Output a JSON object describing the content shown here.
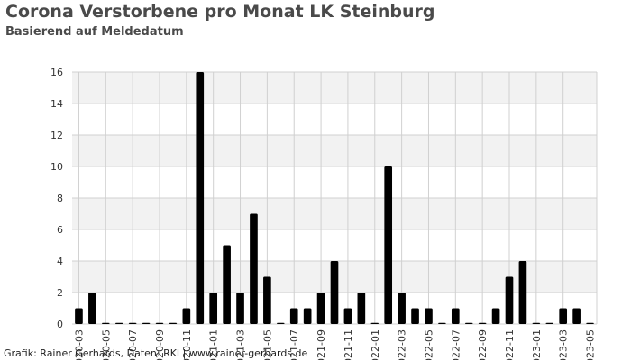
{
  "chart_data": {
    "type": "bar",
    "title": "Corona Verstorbene pro Monat LK Steinburg",
    "subtitle": "Basierend auf Meldedatum",
    "xlabel": "",
    "ylabel": "",
    "ylim": [
      0,
      16
    ],
    "yticks": [
      "0",
      "2",
      "4",
      "6",
      "8",
      "10",
      "12",
      "14",
      "16"
    ],
    "grid": true,
    "bar_color": "#000000",
    "categories": [
      "2020-03",
      "2020-04",
      "2020-05",
      "2020-06",
      "2020-07",
      "2020-08",
      "2020-09",
      "2020-10",
      "2020-11",
      "2020-12",
      "2021-01",
      "2021-02",
      "2021-03",
      "2021-04",
      "2021-05",
      "2021-06",
      "2021-07",
      "2021-08",
      "2021-09",
      "2021-10",
      "2021-11",
      "2021-12",
      "2022-01",
      "2022-02",
      "2022-03",
      "2022-04",
      "2022-05",
      "2022-06",
      "2022-07",
      "2022-08",
      "2022-09",
      "2022-10",
      "2022-11",
      "2022-12",
      "2023-01",
      "2023-02",
      "2023-03",
      "2023-04",
      "2023-05"
    ],
    "tick_labels": [
      "2020-03",
      "2020-05",
      "2020-07",
      "2020-09",
      "2020-11",
      "2021-01",
      "2021-03",
      "2021-05",
      "2021-07",
      "2021-09",
      "2021-11",
      "2022-01",
      "2022-03",
      "2022-05",
      "2022-07",
      "2022-09",
      "2022-11",
      "2023-01",
      "2023-03",
      "2023-05"
    ],
    "values": [
      1,
      2,
      0,
      0,
      0,
      0,
      0,
      0,
      1,
      16,
      2,
      5,
      2,
      7,
      3,
      0,
      1,
      1,
      2,
      4,
      1,
      2,
      0,
      10,
      2,
      1,
      1,
      0,
      1,
      0,
      0,
      1,
      3,
      4,
      0,
      0,
      1,
      1,
      0
    ]
  },
  "credit": "Grafik: Rainer Gerhards, Daten: RKI | www.rainer-gerhards.de"
}
